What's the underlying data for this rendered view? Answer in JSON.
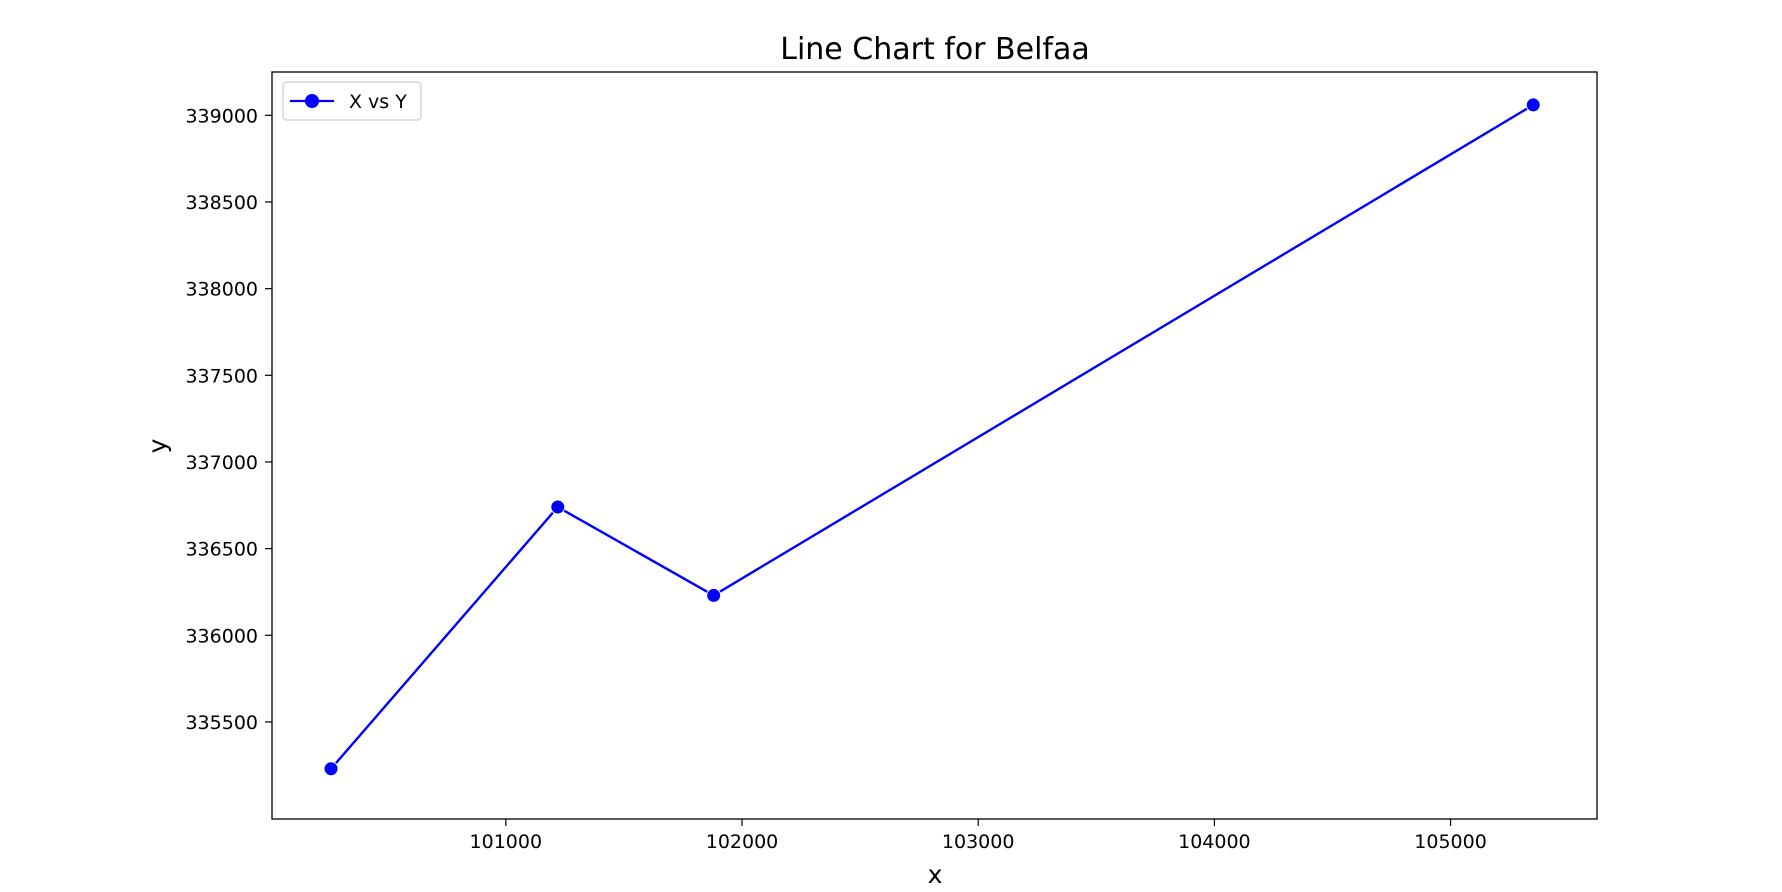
{
  "chart_data": {
    "type": "line",
    "title": "Line Chart for Belfaa",
    "xlabel": "x",
    "ylabel": "y",
    "xlim": [
      100010,
      105620
    ],
    "ylim": [
      334940,
      339250
    ],
    "x_ticks": [
      101000,
      102000,
      103000,
      104000,
      105000
    ],
    "y_ticks": [
      335500,
      336000,
      336500,
      337000,
      337500,
      338000,
      338500,
      339000
    ],
    "grid": false,
    "legend_position": "top-left",
    "series": [
      {
        "name": "X vs Y",
        "color": "#0000ff",
        "marker": "circle",
        "x": [
          100260,
          101220,
          101880,
          105350
        ],
        "y": [
          335230,
          336740,
          336230,
          339060
        ]
      }
    ]
  }
}
